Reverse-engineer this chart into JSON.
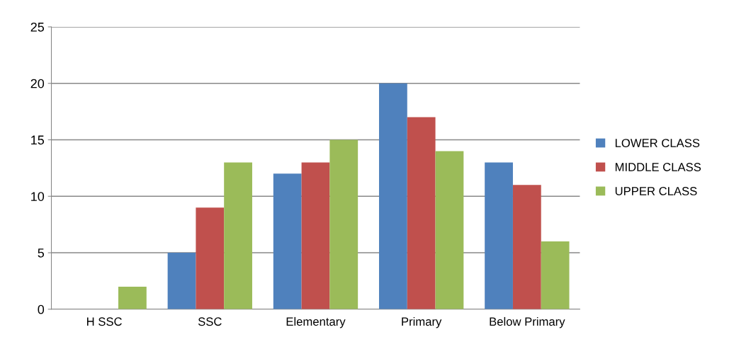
{
  "chart_data": {
    "type": "bar",
    "categories": [
      "H SSC",
      "SSC",
      "Elementary",
      "Primary",
      "Below Primary"
    ],
    "series": [
      {
        "name": "LOWER CLASS",
        "color": "#4f81bd",
        "values": [
          0,
          5,
          12,
          20,
          13
        ]
      },
      {
        "name": "MIDDLE CLASS",
        "color": "#c0504d",
        "values": [
          0,
          9,
          13,
          17,
          11
        ]
      },
      {
        "name": "UPPER CLASS",
        "color": "#9bbb59",
        "values": [
          2,
          13,
          15,
          14,
          6
        ]
      }
    ],
    "ylim": [
      0,
      25
    ],
    "yticks": [
      0,
      5,
      10,
      15,
      20,
      25
    ],
    "grid": "y",
    "legend": "right"
  }
}
